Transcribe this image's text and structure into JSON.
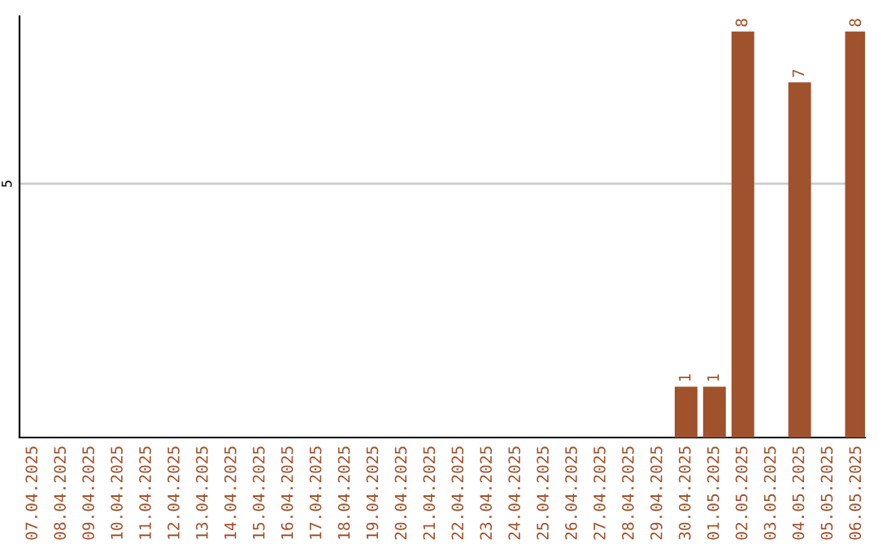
{
  "chart_data": {
    "type": "bar",
    "categories": [
      "07.04.2025",
      "08.04.2025",
      "09.04.2025",
      "10.04.2025",
      "11.04.2025",
      "12.04.2025",
      "13.04.2025",
      "14.04.2025",
      "15.04.2025",
      "16.04.2025",
      "17.04.2025",
      "18.04.2025",
      "19.04.2025",
      "20.04.2025",
      "21.04.2025",
      "22.04.2025",
      "23.04.2025",
      "24.04.2025",
      "25.04.2025",
      "26.04.2025",
      "27.04.2025",
      "28.04.2025",
      "29.04.2025",
      "30.04.2025",
      "01.05.2025",
      "02.05.2025",
      "03.05.2025",
      "04.05.2025",
      "05.05.2025",
      "06.05.2025"
    ],
    "values": [
      null,
      null,
      null,
      null,
      null,
      null,
      null,
      null,
      null,
      null,
      null,
      null,
      null,
      null,
      null,
      null,
      null,
      null,
      null,
      null,
      null,
      null,
      null,
      1,
      1,
      8,
      null,
      7,
      null,
      8
    ],
    "data_labels": true,
    "ylim": [
      0,
      8.3
    ],
    "color": "#a0522d",
    "ref_lines": [
      {
        "axis": "y",
        "value": 5,
        "label": "5",
        "color": "#cccccc"
      }
    ]
  }
}
